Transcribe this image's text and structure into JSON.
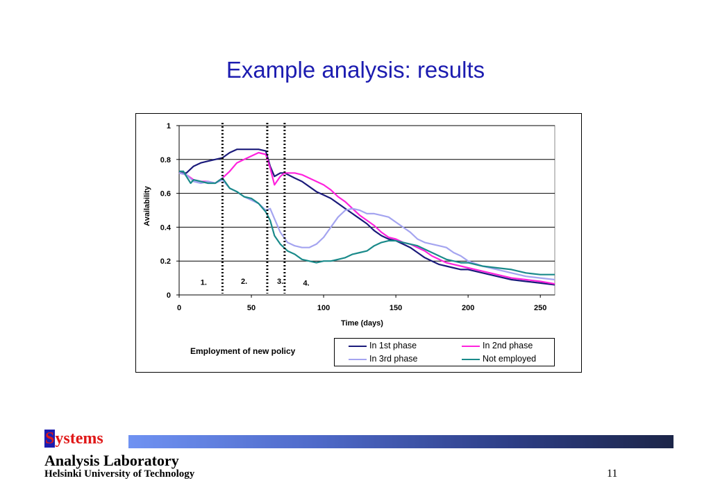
{
  "slide": {
    "title": "Example analysis: results",
    "page_number": "11"
  },
  "footer": {
    "logo_s": "S",
    "logo_rest": "ystems",
    "lab": "Analysis Laboratory",
    "university": "Helsinki University of Technology"
  },
  "colors": {
    "title": "#1c1cb0",
    "logo_red": "#e01818",
    "logo_blue": "#1c1cb0"
  },
  "chart_data": {
    "type": "line",
    "title": "",
    "xlabel": "Time (days)",
    "ylabel": "Availability",
    "xlim": [
      0,
      260
    ],
    "ylim": [
      0,
      1
    ],
    "xticks": [
      "0",
      "50",
      "100",
      "150",
      "200",
      "250"
    ],
    "yticks": [
      "0",
      "0.2",
      "0.4",
      "0.6",
      "0.8",
      "1"
    ],
    "grid": "horizontal",
    "legend_caption": "Employment of new policy",
    "legend_position": "bottom-right",
    "vlines": [
      30,
      61,
      73
    ],
    "phase_labels": [
      {
        "label": "1.",
        "x": 17,
        "y": 0.06
      },
      {
        "label": "2.",
        "x": 45,
        "y": 0.065
      },
      {
        "label": "3.",
        "x": 70,
        "y": 0.065
      },
      {
        "label": "4.",
        "x": 88,
        "y": 0.055
      }
    ],
    "series": [
      {
        "name": "In 1st phase",
        "color": "#1a1a7a",
        "points": [
          [
            0,
            0.72
          ],
          [
            5,
            0.72
          ],
          [
            10,
            0.76
          ],
          [
            15,
            0.78
          ],
          [
            20,
            0.79
          ],
          [
            25,
            0.8
          ],
          [
            30,
            0.81
          ],
          [
            35,
            0.84
          ],
          [
            40,
            0.86
          ],
          [
            45,
            0.86
          ],
          [
            50,
            0.86
          ],
          [
            55,
            0.86
          ],
          [
            60,
            0.85
          ],
          [
            63,
            0.76
          ],
          [
            66,
            0.7
          ],
          [
            70,
            0.72
          ],
          [
            73,
            0.72
          ],
          [
            80,
            0.69
          ],
          [
            85,
            0.67
          ],
          [
            90,
            0.64
          ],
          [
            95,
            0.61
          ],
          [
            100,
            0.59
          ],
          [
            105,
            0.57
          ],
          [
            110,
            0.54
          ],
          [
            115,
            0.51
          ],
          [
            120,
            0.48
          ],
          [
            125,
            0.45
          ],
          [
            130,
            0.42
          ],
          [
            135,
            0.38
          ],
          [
            140,
            0.35
          ],
          [
            145,
            0.33
          ],
          [
            150,
            0.32
          ],
          [
            155,
            0.3
          ],
          [
            160,
            0.28
          ],
          [
            165,
            0.25
          ],
          [
            170,
            0.22
          ],
          [
            175,
            0.2
          ],
          [
            180,
            0.18
          ],
          [
            185,
            0.17
          ],
          [
            190,
            0.16
          ],
          [
            195,
            0.15
          ],
          [
            200,
            0.15
          ],
          [
            210,
            0.13
          ],
          [
            220,
            0.11
          ],
          [
            230,
            0.09
          ],
          [
            240,
            0.08
          ],
          [
            250,
            0.07
          ],
          [
            260,
            0.06
          ]
        ]
      },
      {
        "name": "In 2nd phase",
        "color": "#ff22dd",
        "points": [
          [
            0,
            0.72
          ],
          [
            5,
            0.71
          ],
          [
            10,
            0.68
          ],
          [
            15,
            0.67
          ],
          [
            20,
            0.67
          ],
          [
            25,
            0.66
          ],
          [
            30,
            0.69
          ],
          [
            35,
            0.73
          ],
          [
            40,
            0.78
          ],
          [
            45,
            0.8
          ],
          [
            50,
            0.82
          ],
          [
            55,
            0.84
          ],
          [
            60,
            0.83
          ],
          [
            63,
            0.75
          ],
          [
            66,
            0.65
          ],
          [
            70,
            0.7
          ],
          [
            73,
            0.72
          ],
          [
            80,
            0.72
          ],
          [
            85,
            0.71
          ],
          [
            90,
            0.69
          ],
          [
            95,
            0.67
          ],
          [
            100,
            0.65
          ],
          [
            105,
            0.62
          ],
          [
            110,
            0.58
          ],
          [
            115,
            0.55
          ],
          [
            120,
            0.51
          ],
          [
            125,
            0.47
          ],
          [
            130,
            0.44
          ],
          [
            135,
            0.41
          ],
          [
            140,
            0.37
          ],
          [
            145,
            0.34
          ],
          [
            150,
            0.33
          ],
          [
            155,
            0.31
          ],
          [
            160,
            0.3
          ],
          [
            165,
            0.28
          ],
          [
            170,
            0.26
          ],
          [
            175,
            0.23
          ],
          [
            180,
            0.21
          ],
          [
            185,
            0.19
          ],
          [
            190,
            0.18
          ],
          [
            195,
            0.17
          ],
          [
            200,
            0.16
          ],
          [
            210,
            0.14
          ],
          [
            220,
            0.12
          ],
          [
            230,
            0.1
          ],
          [
            240,
            0.09
          ],
          [
            250,
            0.08
          ],
          [
            260,
            0.065
          ]
        ]
      },
      {
        "name": "In 3rd phase",
        "color": "#a4a4f0",
        "points": [
          [
            0,
            0.72
          ],
          [
            5,
            0.71
          ],
          [
            10,
            0.67
          ],
          [
            15,
            0.66
          ],
          [
            20,
            0.67
          ],
          [
            25,
            0.66
          ],
          [
            30,
            0.68
          ],
          [
            35,
            0.63
          ],
          [
            40,
            0.61
          ],
          [
            45,
            0.58
          ],
          [
            50,
            0.56
          ],
          [
            55,
            0.54
          ],
          [
            60,
            0.5
          ],
          [
            63,
            0.51
          ],
          [
            66,
            0.45
          ],
          [
            70,
            0.37
          ],
          [
            75,
            0.31
          ],
          [
            80,
            0.29
          ],
          [
            85,
            0.28
          ],
          [
            90,
            0.28
          ],
          [
            95,
            0.3
          ],
          [
            100,
            0.34
          ],
          [
            105,
            0.4
          ],
          [
            110,
            0.46
          ],
          [
            115,
            0.5
          ],
          [
            120,
            0.51
          ],
          [
            125,
            0.5
          ],
          [
            130,
            0.48
          ],
          [
            135,
            0.48
          ],
          [
            140,
            0.47
          ],
          [
            145,
            0.46
          ],
          [
            150,
            0.43
          ],
          [
            155,
            0.4
          ],
          [
            160,
            0.37
          ],
          [
            165,
            0.33
          ],
          [
            170,
            0.31
          ],
          [
            175,
            0.3
          ],
          [
            180,
            0.29
          ],
          [
            185,
            0.28
          ],
          [
            190,
            0.25
          ],
          [
            195,
            0.23
          ],
          [
            200,
            0.2
          ],
          [
            210,
            0.17
          ],
          [
            220,
            0.15
          ],
          [
            230,
            0.13
          ],
          [
            240,
            0.11
          ],
          [
            250,
            0.1
          ],
          [
            260,
            0.09
          ]
        ]
      },
      {
        "name": "Not employed",
        "color": "#1a8a8a",
        "points": [
          [
            0,
            0.73
          ],
          [
            3,
            0.73
          ],
          [
            5,
            0.7
          ],
          [
            8,
            0.66
          ],
          [
            10,
            0.68
          ],
          [
            15,
            0.67
          ],
          [
            20,
            0.66
          ],
          [
            25,
            0.66
          ],
          [
            30,
            0.69
          ],
          [
            35,
            0.63
          ],
          [
            40,
            0.61
          ],
          [
            45,
            0.58
          ],
          [
            50,
            0.57
          ],
          [
            55,
            0.54
          ],
          [
            60,
            0.49
          ],
          [
            63,
            0.44
          ],
          [
            66,
            0.35
          ],
          [
            70,
            0.3
          ],
          [
            75,
            0.26
          ],
          [
            80,
            0.24
          ],
          [
            85,
            0.21
          ],
          [
            90,
            0.2
          ],
          [
            95,
            0.19
          ],
          [
            100,
            0.2
          ],
          [
            105,
            0.2
          ],
          [
            110,
            0.21
          ],
          [
            115,
            0.22
          ],
          [
            120,
            0.24
          ],
          [
            125,
            0.25
          ],
          [
            130,
            0.26
          ],
          [
            135,
            0.29
          ],
          [
            140,
            0.31
          ],
          [
            145,
            0.32
          ],
          [
            150,
            0.32
          ],
          [
            155,
            0.31
          ],
          [
            160,
            0.3
          ],
          [
            165,
            0.29
          ],
          [
            170,
            0.27
          ],
          [
            175,
            0.25
          ],
          [
            180,
            0.23
          ],
          [
            185,
            0.21
          ],
          [
            190,
            0.2
          ],
          [
            195,
            0.19
          ],
          [
            200,
            0.19
          ],
          [
            210,
            0.17
          ],
          [
            220,
            0.16
          ],
          [
            230,
            0.15
          ],
          [
            240,
            0.13
          ],
          [
            250,
            0.12
          ],
          [
            260,
            0.12
          ]
        ]
      }
    ]
  }
}
